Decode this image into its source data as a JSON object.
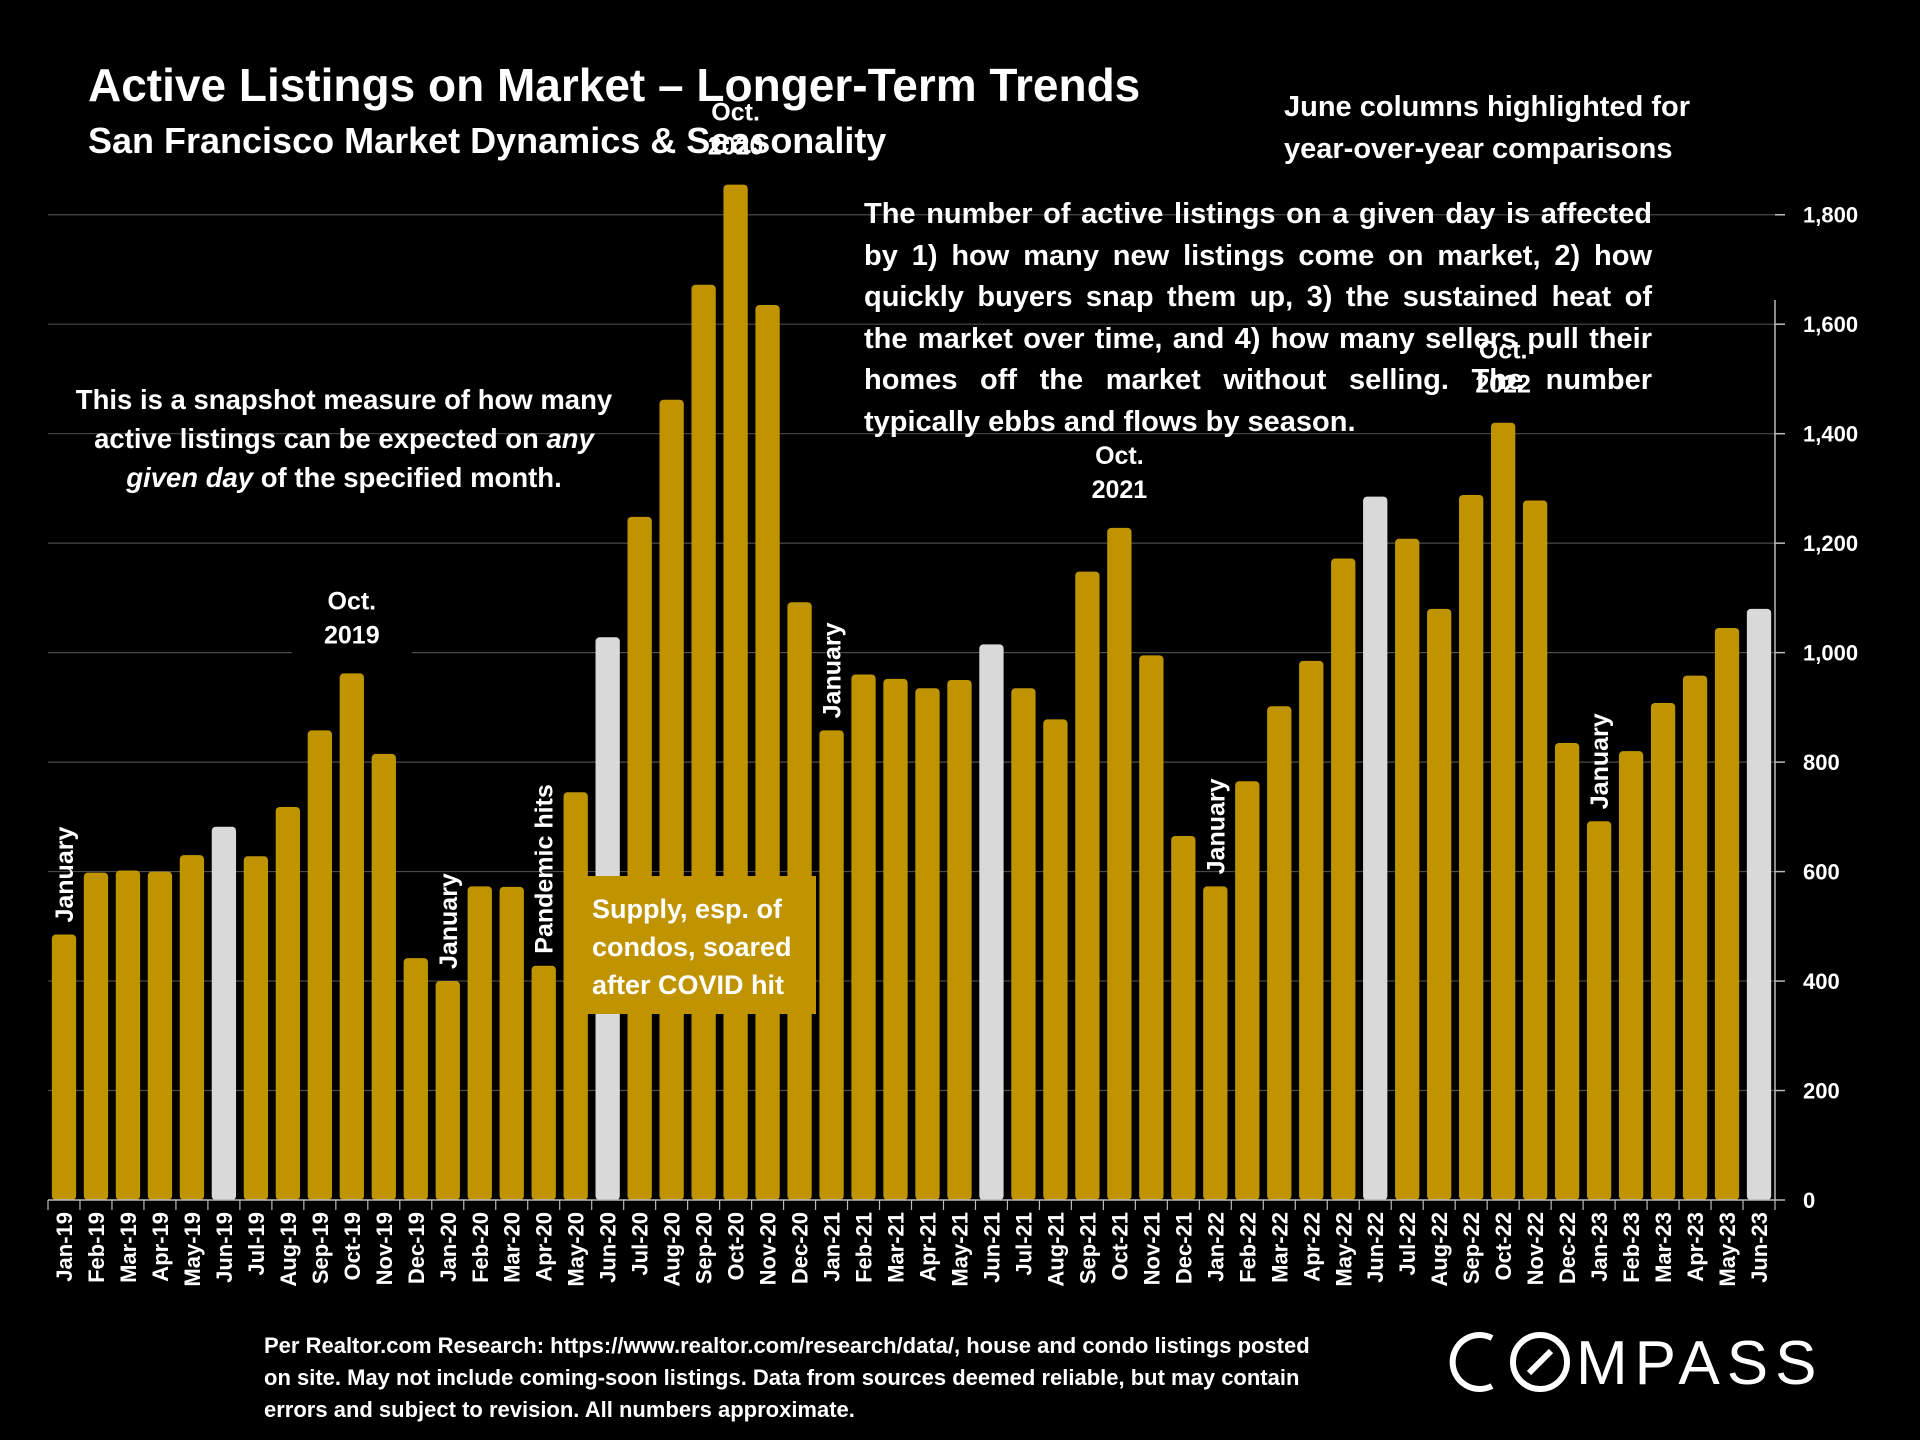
{
  "header": {
    "title": "Active Listings on Market – Longer-Term Trends",
    "subtitle": "San Francisco Market Dynamics & Seasonality",
    "june_note": "June columns highlighted for year-over-year comparisons"
  },
  "explanation": "The number of active listings on a given day is affected by 1) how many new listings come on market, 2) how quickly buyers snap them up, 3) the sustained heat of the market over time, and 4) how many sellers pull their homes off the market without selling. The number typically ebbs and flows by season.",
  "snapshot": {
    "part1": "This is a snapshot measure of how many active listings can be expected on",
    "emphasis": "any given day",
    "part2": "of the specified month."
  },
  "covid_box": "Supply, esp. of condos, soared after COVID hit",
  "footnote": "Per Realtor.com Research:  https://www.realtor.com/research/data/, house and condo listings posted on site. May not include coming-soon listings. Data from sources deemed reliable, but may contain errors and subject to revision. All numbers approximate.",
  "logo_text": "COMPASS",
  "chart_data": {
    "type": "bar",
    "categories": [
      "Jan-19",
      "Feb-19",
      "Mar-19",
      "Apr-19",
      "May-19",
      "Jun-19",
      "Jul-19",
      "Aug-19",
      "Sep-19",
      "Oct-19",
      "Nov-19",
      "Dec-19",
      "Jan-20",
      "Feb-20",
      "Mar-20",
      "Apr-20",
      "May-20",
      "Jun-20",
      "Jul-20",
      "Aug-20",
      "Sep-20",
      "Oct-20",
      "Nov-20",
      "Dec-20",
      "Jan-21",
      "Feb-21",
      "Mar-21",
      "Apr-21",
      "May-21",
      "Jun-21",
      "Jul-21",
      "Aug-21",
      "Sep-21",
      "Oct-21",
      "Nov-21",
      "Dec-21",
      "Jan-22",
      "Feb-22",
      "Mar-22",
      "Apr-22",
      "May-22",
      "Jun-22",
      "Jul-22",
      "Aug-22",
      "Sep-22",
      "Oct-22",
      "Nov-22",
      "Dec-22",
      "Jan-23",
      "Feb-23",
      "Mar-23",
      "Apr-23",
      "May-23",
      "Jun-23"
    ],
    "values": [
      485,
      598,
      602,
      600,
      630,
      682,
      628,
      718,
      858,
      962,
      815,
      442,
      400,
      573,
      572,
      428,
      745,
      1028,
      1248,
      1462,
      1672,
      1855,
      1635,
      1092,
      858,
      960,
      952,
      935,
      950,
      1015,
      935,
      878,
      1148,
      1228,
      995,
      665,
      573,
      765,
      902,
      985,
      1172,
      1285,
      1208,
      1080,
      1288,
      1420,
      1278,
      835,
      692,
      820,
      908,
      958,
      1045,
      1080
    ],
    "highlighted": [
      "Jun-19",
      "Jun-20",
      "Jun-21",
      "Jun-22",
      "Jun-23"
    ],
    "ylim": [
      0,
      1900
    ],
    "y_ticks": [
      0,
      200,
      400,
      600,
      800,
      1000,
      1200,
      1400,
      1600,
      1800
    ],
    "y_tick_labels": [
      "0",
      "200",
      "400",
      "600",
      "800",
      "1,000",
      "1,200",
      "1,400",
      "1,600",
      "1,800"
    ],
    "y_axis_side": "right",
    "grid": true,
    "colors": {
      "bar": "#C09300",
      "highlight": "#D9D9D9",
      "background": "#000000",
      "grid": "#4A4A4A"
    },
    "annotations": [
      {
        "text": "January",
        "category": "Jan-19",
        "orientation": "vertical"
      },
      {
        "text": "January",
        "category": "Jan-20",
        "orientation": "vertical"
      },
      {
        "text": "Pandemic hits",
        "category": "Apr-20",
        "orientation": "vertical"
      },
      {
        "text": "January",
        "category": "Jan-21",
        "orientation": "vertical"
      },
      {
        "text": "January",
        "category": "Jan-22",
        "orientation": "vertical"
      },
      {
        "text": "January",
        "category": "Jan-23",
        "orientation": "vertical"
      },
      {
        "text": [
          "Oct.",
          "2019"
        ],
        "category": "Oct-19",
        "orientation": "horizontal"
      },
      {
        "text": [
          "Oct.",
          "2020"
        ],
        "category": "Oct-20",
        "orientation": "horizontal"
      },
      {
        "text": [
          "Oct.",
          "2021"
        ],
        "category": "Oct-21",
        "orientation": "horizontal"
      },
      {
        "text": [
          "Oct.",
          "2022"
        ],
        "category": "Oct-22",
        "orientation": "horizontal"
      }
    ]
  }
}
